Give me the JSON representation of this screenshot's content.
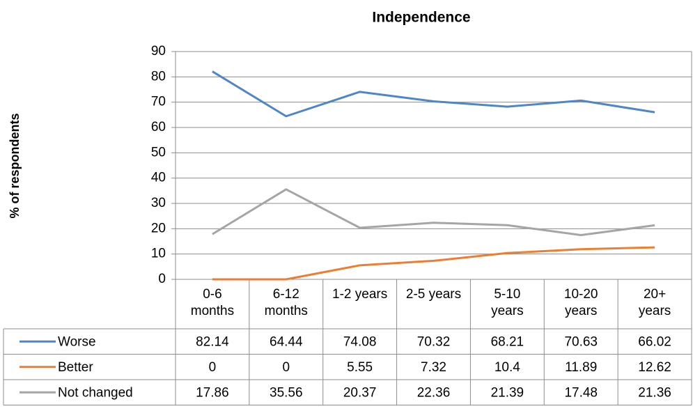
{
  "chart_data": {
    "type": "line",
    "title": "Independence",
    "y_label": "% of respondents",
    "categories": [
      "0-6 months",
      "6-12 months",
      "1-2 years",
      "2-5 years",
      "5-10 years",
      "10-20 years",
      "20+ years"
    ],
    "series": [
      {
        "name": "Worse",
        "color": "#4f86c6",
        "values": [
          82.14,
          64.44,
          74.08,
          70.32,
          68.21,
          70.63,
          66.02
        ]
      },
      {
        "name": "Better",
        "color": "#ed7d31",
        "values": [
          0,
          0,
          5.55,
          7.32,
          10.4,
          11.89,
          12.62
        ]
      },
      {
        "name": "Not changed",
        "color": "#a5a5a5",
        "values": [
          17.86,
          35.56,
          20.37,
          22.36,
          21.39,
          17.48,
          21.36
        ]
      }
    ],
    "ylim": [
      0,
      90
    ],
    "yticks": [
      0,
      10,
      20,
      30,
      40,
      50,
      60,
      70,
      80,
      90
    ],
    "grid": true
  }
}
